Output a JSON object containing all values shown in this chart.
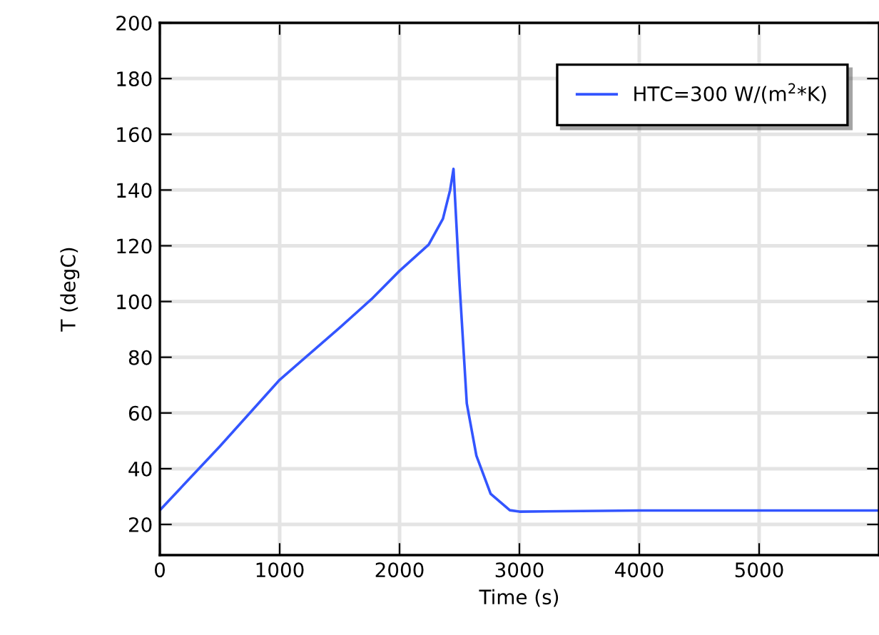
{
  "chart_data": {
    "type": "line",
    "xlabel": "Time (s)",
    "ylabel": "T (degC)",
    "xlim": [
      0,
      6000
    ],
    "xticks": [
      0,
      1000,
      2000,
      3000,
      4000,
      5000
    ],
    "ylim": [
      9,
      200
    ],
    "yticks": [
      20,
      40,
      60,
      80,
      100,
      120,
      140,
      160,
      180,
      200
    ],
    "grid": true,
    "legend": "top right",
    "marker": "none",
    "line_style": "solid",
    "series": [
      {
        "name": "HTC=300 W/(m$^{2}$*K)",
        "color": "#3355ff",
        "x": [
          0,
          500,
          1000,
          1500,
          1765,
          2000,
          2243,
          2362,
          2422,
          2450,
          2501,
          2561,
          2641,
          2760,
          2920,
          3000,
          4000,
          5000,
          6000
        ],
        "values": [
          25.1,
          48,
          71.9,
          90.6,
          100.8,
          111,
          120.4,
          129.7,
          140,
          147.6,
          106,
          63.4,
          44.7,
          31,
          25.1,
          24.6,
          25,
          25,
          25
        ]
      }
    ]
  }
}
